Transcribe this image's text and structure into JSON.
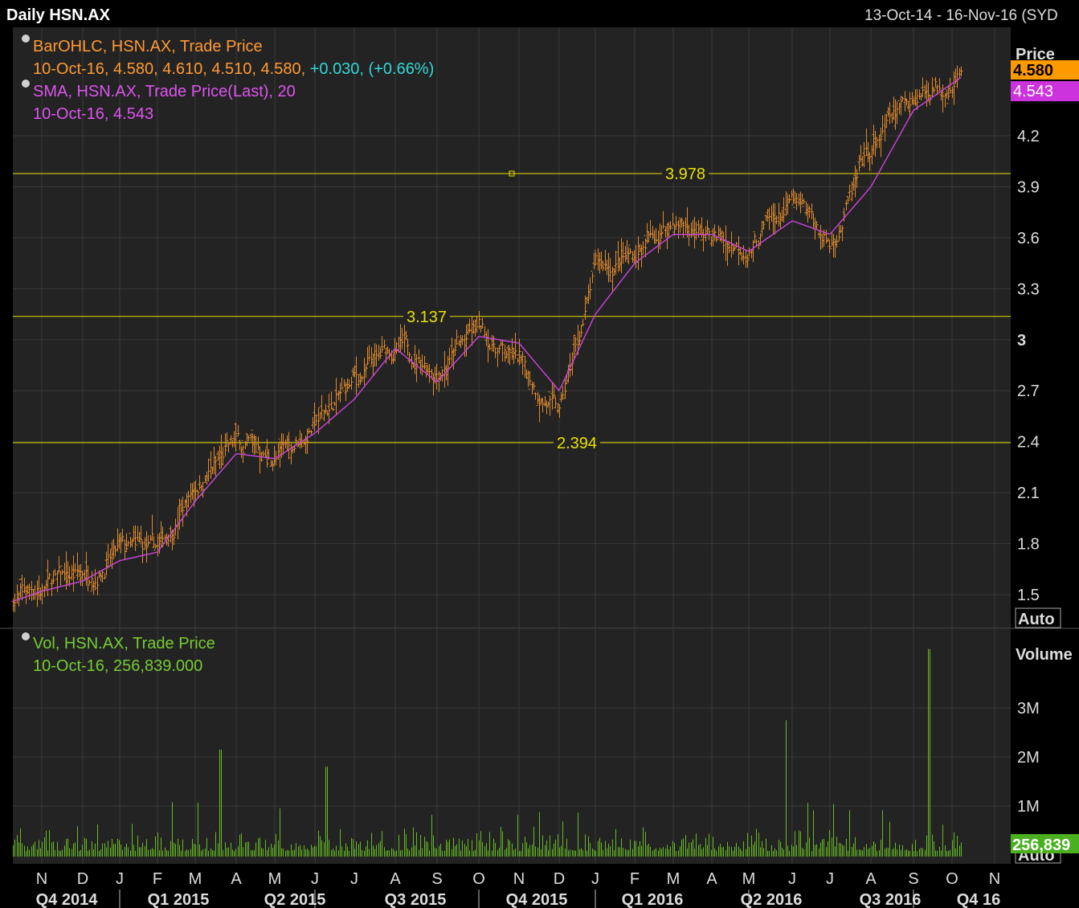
{
  "header": {
    "title": "Daily HSN.AX",
    "date_range": "13-Oct-14 - 16-Nov-16 (SYD"
  },
  "price_legend": {
    "ohlc_name": "BarOHLC, HSN.AX, Trade Price",
    "ohlc_values": "10-Oct-16, 4.580, 4.610, 4.510, 4.580,",
    "ohlc_change": "+0.030, (+0.66%)",
    "sma_name": "SMA, HSN.AX, Trade Price(Last),  20",
    "sma_values": "10-Oct-16, 4.543"
  },
  "price_axis": {
    "title": "Price",
    "last_price_label": "4.580",
    "sma_label": "4.543",
    "auto_label": "Auto"
  },
  "volume_legend": {
    "name": "Vol, HSN.AX, Trade Price",
    "values": "10-Oct-16, 256,839.000"
  },
  "volume_axis": {
    "title": "Volume",
    "last_volume_label": "256,839",
    "auto_label": "Auto"
  },
  "colors": {
    "background": "#000000",
    "panel": "#232323",
    "grid": "#3a3a3a",
    "price_bars": "#e08a2c",
    "sma": "#cc44dd",
    "volume": "#66bb22",
    "hlines": "#e8e000",
    "change": "#33d6d6",
    "last_price_bg": "#ff9900",
    "sma_bg": "#cc33dd",
    "volume_bg": "#4ab020"
  },
  "chart_data": [
    {
      "type": "line",
      "title": "Daily HSN.AX",
      "series": [
        {
          "name": "BarOHLC, HSN.AX, Trade Price",
          "style": "ohlc-bars",
          "x": [
            "13-Oct-14",
            "Nov-14",
            "Dec-14",
            "Jan-15",
            "Feb-15",
            "Mar-15",
            "Apr-15",
            "May-15",
            "Jun-15",
            "Jul-15",
            "Aug-15",
            "Sep-15",
            "Oct-15",
            "Nov-15",
            "Dec-15",
            "Jan-16",
            "Feb-16",
            "Mar-16",
            "Apr-16",
            "May-16",
            "Jun-16",
            "Jul-16",
            "Aug-16",
            "Sep-16",
            "10-Oct-16"
          ],
          "close": [
            1.48,
            1.55,
            1.62,
            1.75,
            1.75,
            2.15,
            2.38,
            2.3,
            2.5,
            2.75,
            2.95,
            2.85,
            3.05,
            2.85,
            2.55,
            3.4,
            3.5,
            3.7,
            3.6,
            3.55,
            3.8,
            3.55,
            4.1,
            4.45,
            4.58
          ]
        },
        {
          "name": "SMA, HSN.AX, Trade Price(Last),  20",
          "x": [
            "13-Oct-14",
            "Nov-14",
            "Dec-14",
            "Jan-15",
            "Feb-15",
            "Mar-15",
            "Apr-15",
            "May-15",
            "Jun-15",
            "Jul-15",
            "Aug-15",
            "Sep-15",
            "Oct-15",
            "Nov-15",
            "Dec-15",
            "Jan-16",
            "Feb-16",
            "Mar-16",
            "Apr-16",
            "May-16",
            "Jun-16",
            "Jul-16",
            "Aug-16",
            "Sep-16",
            "10-Oct-16"
          ],
          "values": [
            1.46,
            1.52,
            1.58,
            1.7,
            1.75,
            2.05,
            2.33,
            2.3,
            2.45,
            2.65,
            2.95,
            2.75,
            3.02,
            2.98,
            2.7,
            3.15,
            3.45,
            3.62,
            3.62,
            3.52,
            3.7,
            3.62,
            3.9,
            4.35,
            4.543
          ]
        }
      ],
      "last": {
        "date": "10-Oct-16",
        "open": 4.58,
        "high": 4.61,
        "low": 4.51,
        "close": 4.58,
        "change": 0.03,
        "change_pct": 0.66
      },
      "hlines": [
        3.978,
        3.137,
        2.394
      ],
      "ylim": [
        1.4,
        4.7
      ],
      "yticks": [
        "1.5",
        "1.8",
        "2.1",
        "2.4",
        "2.7",
        "3",
        "3.3",
        "3.6",
        "3.9",
        "4.2"
      ],
      "months": [
        "N",
        "D",
        "J",
        "F",
        "M",
        "A",
        "M",
        "J",
        "J",
        "A",
        "S",
        "O",
        "N",
        "D",
        "J",
        "F",
        "M",
        "A",
        "M",
        "J",
        "J",
        "A",
        "S",
        "O",
        "N"
      ],
      "quarters": [
        "Q4 2014",
        "Q1 2015",
        "Q2 2015",
        "Q3 2015",
        "Q4 2015",
        "Q1 2016",
        "Q2 2016",
        "Q3 2016",
        "Q4 16"
      ],
      "grid": true
    },
    {
      "type": "bar",
      "title": "Vol, HSN.AX, Trade Price",
      "series": [
        {
          "name": "Vol, HSN.AX, Trade Price",
          "last": 256839
        }
      ],
      "spikes": [
        {
          "date": "Mar-15",
          "value": 2150000
        },
        {
          "date": "Jun-15",
          "value": 1800000
        },
        {
          "date": "Jun-16",
          "value": 2750000
        },
        {
          "date": "Sep-16",
          "value": 4200000
        }
      ],
      "ylim": [
        0,
        4300000
      ],
      "yticks": [
        "1M",
        "2M",
        "3M"
      ],
      "grid": true
    }
  ]
}
